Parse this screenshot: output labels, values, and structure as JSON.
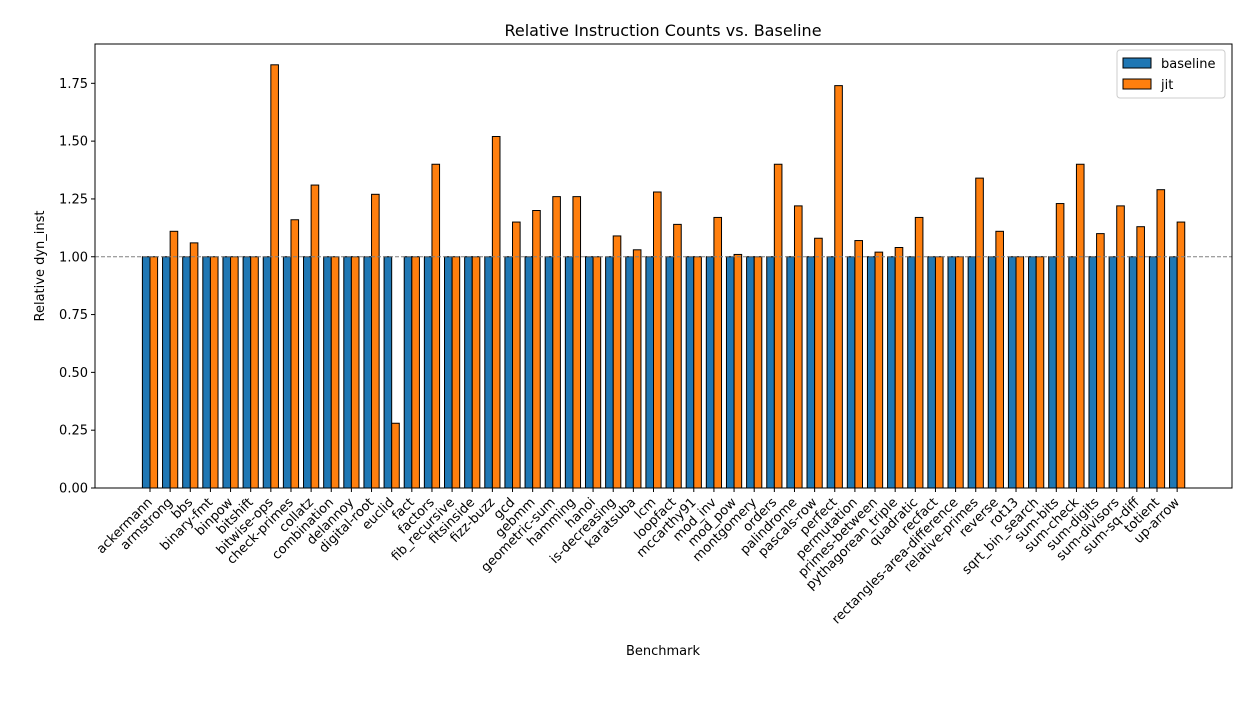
{
  "chart_data": {
    "type": "bar",
    "title": "Relative Instruction Counts vs. Baseline",
    "xlabel": "Benchmark",
    "ylabel": "Relative dyn_inst",
    "ylim": [
      0,
      1.92
    ],
    "yticks": [
      "0.00",
      "0.25",
      "0.50",
      "0.75",
      "1.00",
      "1.25",
      "1.50",
      "1.75"
    ],
    "reference_line": 1.0,
    "legend_position": "upper right",
    "grid": false,
    "categories": [
      "ackermann",
      "armstrong",
      "bbs",
      "binary-fmt",
      "binpow",
      "bitshift",
      "bitwise-ops",
      "check-primes",
      "collatz",
      "combination",
      "delannoy",
      "digital-root",
      "euclid",
      "fact",
      "factors",
      "fib_recursive",
      "fitsinside",
      "fizz-buzz",
      "gcd",
      "gebmm",
      "geometric-sum",
      "hamming",
      "hanoi",
      "is-decreasing",
      "karatsuba",
      "lcm",
      "loopfact",
      "mccarthy91",
      "mod_inv",
      "mod_pow",
      "montgomery",
      "orders",
      "palindrome",
      "pascals-row",
      "perfect",
      "permutation",
      "primes-between",
      "pythagorean_triple",
      "quadratic",
      "recfact",
      "rectangles-area-difference",
      "relative-primes",
      "reverse",
      "rot13",
      "sqrt_bin_search",
      "sum-bits",
      "sum-check",
      "sum-digits",
      "sum-divisors",
      "sum-sq-diff",
      "totient",
      "up-arrow"
    ],
    "series": [
      {
        "name": "baseline",
        "color": "#1f77b4",
        "values": [
          1.0,
          1.0,
          1.0,
          1.0,
          1.0,
          1.0,
          1.0,
          1.0,
          1.0,
          1.0,
          1.0,
          1.0,
          1.0,
          1.0,
          1.0,
          1.0,
          1.0,
          1.0,
          1.0,
          1.0,
          1.0,
          1.0,
          1.0,
          1.0,
          1.0,
          1.0,
          1.0,
          1.0,
          1.0,
          1.0,
          1.0,
          1.0,
          1.0,
          1.0,
          1.0,
          1.0,
          1.0,
          1.0,
          1.0,
          1.0,
          1.0,
          1.0,
          1.0,
          1.0,
          1.0,
          1.0,
          1.0,
          1.0,
          1.0,
          1.0,
          1.0,
          1.0
        ]
      },
      {
        "name": "jit",
        "color": "#ff7f0e",
        "values": [
          1.0,
          1.11,
          1.06,
          1.0,
          1.0,
          1.0,
          1.83,
          1.16,
          1.31,
          1.0,
          1.0,
          1.27,
          0.28,
          1.0,
          1.4,
          1.0,
          1.0,
          1.52,
          1.15,
          1.2,
          1.26,
          1.26,
          1.0,
          1.09,
          1.03,
          1.28,
          1.14,
          1.0,
          1.17,
          1.01,
          1.0,
          1.4,
          1.22,
          1.08,
          1.74,
          1.07,
          1.02,
          1.04,
          1.17,
          1.0,
          1.0,
          1.34,
          1.11,
          1.0,
          1.0,
          1.23,
          1.4,
          1.1,
          1.22,
          1.13,
          1.29,
          1.15
        ]
      }
    ]
  }
}
